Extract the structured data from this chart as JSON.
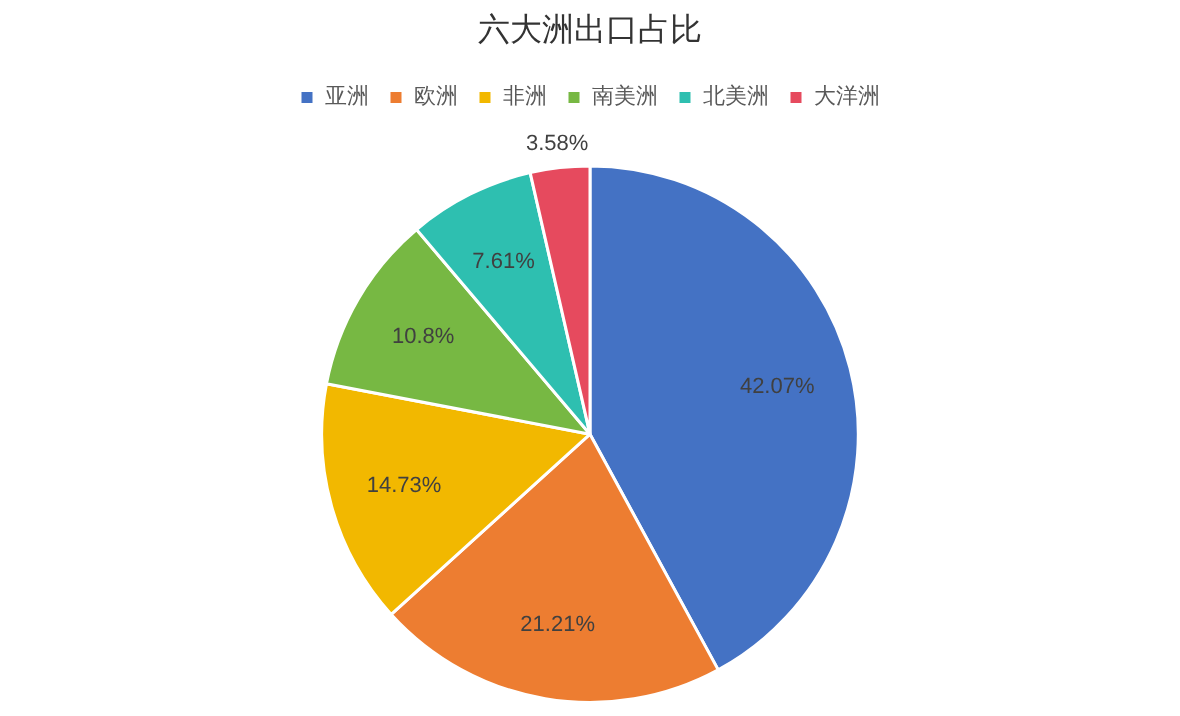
{
  "chart_data": {
    "type": "pie",
    "title": "六大洲出口占比",
    "categories": [
      "亚洲",
      "欧洲",
      "非洲",
      "南美洲",
      "北美洲",
      "大洋洲"
    ],
    "values": [
      42.07,
      21.21,
      14.73,
      10.8,
      7.61,
      3.58
    ],
    "colors": [
      "#4472c4",
      "#ed7d31",
      "#f2b800",
      "#77b843",
      "#2ebfb0",
      "#e64a5e"
    ],
    "value_labels": [
      "42.07%",
      "21.21%",
      "14.73%",
      "10.8%",
      "7.61%",
      "3.58%"
    ],
    "legend": "top"
  }
}
